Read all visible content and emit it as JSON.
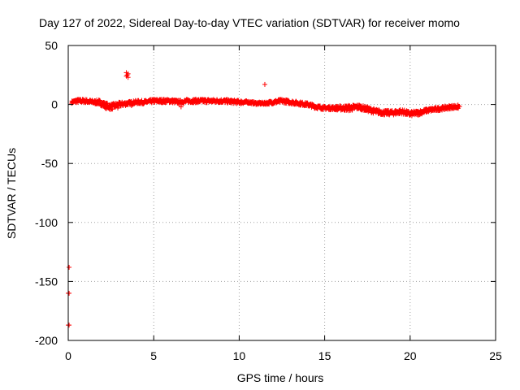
{
  "chart_data": {
    "type": "scatter",
    "title": "Day 127 of 2022, Sidereal Day-to-day VTEC variation (SDTVAR) for receiver momo",
    "xlabel": "GPS time / hours",
    "ylabel": "SDTVAR / TECUs",
    "xlim": [
      0,
      25
    ],
    "ylim": [
      -200,
      50
    ],
    "xticks": [
      0,
      5,
      10,
      15,
      20,
      25
    ],
    "yticks": [
      50,
      0,
      -50,
      -100,
      -150,
      -200
    ],
    "grid": true,
    "marker": "+",
    "series": [
      {
        "name": "SDTVAR",
        "color": "#ff0000",
        "band": [
          [
            0.2,
            2
          ],
          [
            0.5,
            3
          ],
          [
            1.0,
            3
          ],
          [
            1.5,
            2
          ],
          [
            1.8,
            2
          ],
          [
            2.2,
            -1
          ],
          [
            2.5,
            -2
          ],
          [
            3.0,
            0
          ],
          [
            3.5,
            1
          ],
          [
            4.0,
            2
          ],
          [
            4.5,
            2
          ],
          [
            5.0,
            3
          ],
          [
            5.5,
            3
          ],
          [
            6.0,
            3
          ],
          [
            6.5,
            2
          ],
          [
            7.0,
            3
          ],
          [
            8.0,
            3
          ],
          [
            9.0,
            3
          ],
          [
            10.0,
            2
          ],
          [
            10.5,
            2
          ],
          [
            11.0,
            1
          ],
          [
            11.5,
            1
          ],
          [
            12.0,
            2
          ],
          [
            12.5,
            3
          ],
          [
            13.0,
            2
          ],
          [
            13.5,
            1
          ],
          [
            14.0,
            0
          ],
          [
            14.5,
            -2
          ],
          [
            15.0,
            -3
          ],
          [
            15.5,
            -3
          ],
          [
            16.0,
            -3
          ],
          [
            16.5,
            -3
          ],
          [
            17.0,
            -2
          ],
          [
            17.5,
            -4
          ],
          [
            18.0,
            -6
          ],
          [
            18.5,
            -7
          ],
          [
            19.0,
            -7
          ],
          [
            19.5,
            -6
          ],
          [
            20.0,
            -8
          ],
          [
            20.5,
            -7
          ],
          [
            21.0,
            -5
          ],
          [
            21.5,
            -4
          ],
          [
            22.0,
            -3
          ],
          [
            22.5,
            -2
          ],
          [
            22.9,
            -2
          ]
        ],
        "thickness": [
          2,
          3,
          3,
          3,
          4,
          5,
          5,
          4,
          3,
          3,
          3,
          3,
          3,
          3,
          3,
          3,
          3,
          3,
          3,
          2,
          2,
          2,
          3,
          3,
          3,
          3,
          3,
          3,
          3,
          3,
          4,
          5,
          4,
          4,
          4,
          4,
          4,
          4,
          4,
          4,
          3,
          3,
          3,
          3,
          3
        ],
        "outliers": [
          [
            3.4,
            27
          ],
          [
            3.45,
            25
          ],
          [
            3.5,
            23
          ],
          [
            3.4,
            24
          ],
          [
            3.5,
            26
          ],
          [
            11.5,
            17
          ],
          [
            0.05,
            -138
          ],
          [
            0.0,
            -160
          ],
          [
            0.05,
            -160
          ],
          [
            0.0,
            -187
          ],
          [
            0.05,
            -187
          ],
          [
            3.7,
            -1
          ],
          [
            2.9,
            -3
          ],
          [
            6.6,
            -2
          ],
          [
            12.3,
            4
          ]
        ]
      }
    ]
  }
}
